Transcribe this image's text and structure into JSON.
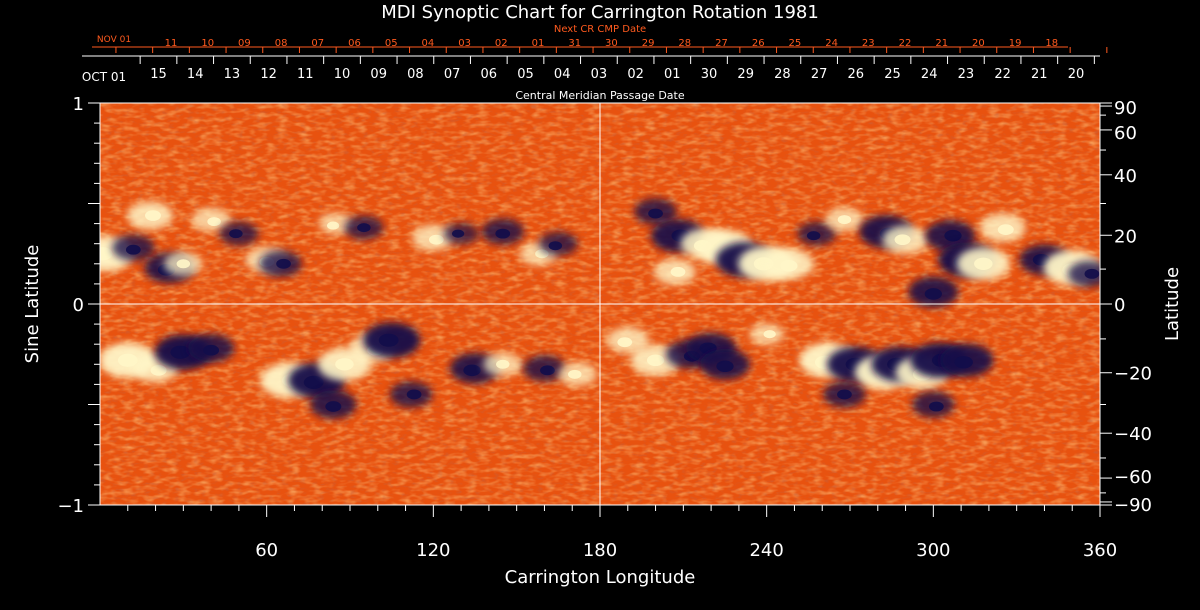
{
  "chart_data": {
    "type": "heatmap",
    "title": "MDI Synoptic Chart for Carrington Rotation 1981",
    "xlabel": "Carrington Longitude",
    "ylabel_left": "Sine Latitude",
    "ylabel_right": "Latitude",
    "xlim": [
      0,
      360
    ],
    "ylim": [
      -1,
      1
    ],
    "x_ticks": [
      60,
      120,
      180,
      240,
      300,
      360
    ],
    "y_ticks_left": [
      {
        "value": 1,
        "label": "1"
      },
      {
        "value": 0,
        "label": "0"
      },
      {
        "value": -1,
        "label": "−1"
      }
    ],
    "y_ticks_right": [
      {
        "deg": 90,
        "label": "90"
      },
      {
        "deg": 60,
        "label": "60"
      },
      {
        "deg": 40,
        "label": "40"
      },
      {
        "deg": 20,
        "label": "20"
      },
      {
        "deg": 0,
        "label": "0"
      },
      {
        "deg": -20,
        "label": "−20"
      },
      {
        "deg": -40,
        "label": "−40"
      },
      {
        "deg": -60,
        "label": "−60"
      },
      {
        "deg": -90,
        "label": "−90"
      }
    ],
    "cmp_axis": {
      "label": "Central Meridian Passage Date",
      "start_label": "OCT 01",
      "dates": [
        "15",
        "14",
        "13",
        "12",
        "11",
        "10",
        "09",
        "08",
        "07",
        "06",
        "05",
        "04",
        "03",
        "02",
        "01",
        "30",
        "29",
        "28",
        "27",
        "26",
        "25",
        "24",
        "23",
        "22",
        "21",
        "20"
      ]
    },
    "next_cr_axis": {
      "label": "Next CR CMP Date",
      "start_label": "NOV 01",
      "dates": [
        "11",
        "10",
        "09",
        "08",
        "07",
        "06",
        "05",
        "04",
        "03",
        "02",
        "01",
        "31",
        "30",
        "29",
        "28",
        "27",
        "26",
        "25",
        "24",
        "23",
        "22",
        "21",
        "20",
        "19",
        "18"
      ]
    },
    "grid_lines": {
      "vertical_longitude": 180,
      "horizontal_sine_latitude": 0
    },
    "features": [
      {
        "lon": 2,
        "sinlat": 0.25,
        "sign": "positive",
        "strength": 1.0
      },
      {
        "lon": 12,
        "sinlat": 0.28,
        "sign": "negative",
        "strength": 0.6
      },
      {
        "lon": 18,
        "sinlat": 0.44,
        "sign": "positive",
        "strength": 0.7
      },
      {
        "lon": 25,
        "sinlat": 0.18,
        "sign": "negative",
        "strength": 0.8
      },
      {
        "lon": 30,
        "sinlat": 0.2,
        "sign": "positive",
        "strength": 0.5
      },
      {
        "lon": 40,
        "sinlat": 0.42,
        "sign": "positive",
        "strength": 0.5
      },
      {
        "lon": 50,
        "sinlat": 0.35,
        "sign": "negative",
        "strength": 0.5
      },
      {
        "lon": 60,
        "sinlat": 0.22,
        "sign": "positive",
        "strength": 0.6
      },
      {
        "lon": 65,
        "sinlat": 0.2,
        "sign": "negative",
        "strength": 0.6
      },
      {
        "lon": 85,
        "sinlat": 0.4,
        "sign": "positive",
        "strength": 0.4
      },
      {
        "lon": 95,
        "sinlat": 0.38,
        "sign": "negative",
        "strength": 0.5
      },
      {
        "lon": 120,
        "sinlat": 0.33,
        "sign": "positive",
        "strength": 0.6
      },
      {
        "lon": 130,
        "sinlat": 0.35,
        "sign": "negative",
        "strength": 0.4
      },
      {
        "lon": 145,
        "sinlat": 0.36,
        "sign": "negative",
        "strength": 0.6
      },
      {
        "lon": 158,
        "sinlat": 0.25,
        "sign": "positive",
        "strength": 0.5
      },
      {
        "lon": 165,
        "sinlat": 0.3,
        "sign": "negative",
        "strength": 0.5
      },
      {
        "lon": 10,
        "sinlat": -0.28,
        "sign": "positive",
        "strength": 1.0
      },
      {
        "lon": 20,
        "sinlat": -0.32,
        "sign": "positive",
        "strength": 0.7
      },
      {
        "lon": 30,
        "sinlat": -0.24,
        "sign": "negative",
        "strength": 1.0
      },
      {
        "lon": 40,
        "sinlat": -0.22,
        "sign": "negative",
        "strength": 0.7
      },
      {
        "lon": 68,
        "sinlat": -0.38,
        "sign": "positive",
        "strength": 1.0
      },
      {
        "lon": 78,
        "sinlat": -0.38,
        "sign": "negative",
        "strength": 1.0
      },
      {
        "lon": 88,
        "sinlat": -0.3,
        "sign": "positive",
        "strength": 0.9
      },
      {
        "lon": 98,
        "sinlat": -0.22,
        "sign": "positive",
        "strength": 0.7
      },
      {
        "lon": 105,
        "sinlat": -0.18,
        "sign": "negative",
        "strength": 1.0
      },
      {
        "lon": 84,
        "sinlat": -0.5,
        "sign": "negative",
        "strength": 0.7
      },
      {
        "lon": 112,
        "sinlat": -0.45,
        "sign": "negative",
        "strength": 0.6
      },
      {
        "lon": 135,
        "sinlat": -0.32,
        "sign": "negative",
        "strength": 0.8
      },
      {
        "lon": 145,
        "sinlat": -0.3,
        "sign": "positive",
        "strength": 0.5
      },
      {
        "lon": 160,
        "sinlat": -0.32,
        "sign": "negative",
        "strength": 0.6
      },
      {
        "lon": 172,
        "sinlat": -0.35,
        "sign": "positive",
        "strength": 0.5
      },
      {
        "lon": 200,
        "sinlat": 0.46,
        "sign": "negative",
        "strength": 0.6
      },
      {
        "lon": 208,
        "sinlat": 0.34,
        "sign": "negative",
        "strength": 0.9
      },
      {
        "lon": 218,
        "sinlat": 0.3,
        "sign": "positive",
        "strength": 0.8
      },
      {
        "lon": 225,
        "sinlat": 0.28,
        "sign": "positive",
        "strength": 1.0
      },
      {
        "lon": 232,
        "sinlat": 0.22,
        "sign": "negative",
        "strength": 1.0
      },
      {
        "lon": 240,
        "sinlat": 0.2,
        "sign": "positive",
        "strength": 1.0
      },
      {
        "lon": 248,
        "sinlat": 0.2,
        "sign": "positive",
        "strength": 0.8
      },
      {
        "lon": 207,
        "sinlat": 0.16,
        "sign": "positive",
        "strength": 0.6
      },
      {
        "lon": 258,
        "sinlat": 0.35,
        "sign": "negative",
        "strength": 0.5
      },
      {
        "lon": 268,
        "sinlat": 0.42,
        "sign": "positive",
        "strength": 0.5
      },
      {
        "lon": 283,
        "sinlat": 0.36,
        "sign": "negative",
        "strength": 0.9
      },
      {
        "lon": 290,
        "sinlat": 0.32,
        "sign": "positive",
        "strength": 0.7
      },
      {
        "lon": 300,
        "sinlat": 0.06,
        "sign": "negative",
        "strength": 0.8
      },
      {
        "lon": 306,
        "sinlat": 0.34,
        "sign": "negative",
        "strength": 0.8
      },
      {
        "lon": 312,
        "sinlat": 0.22,
        "sign": "negative",
        "strength": 1.0
      },
      {
        "lon": 318,
        "sinlat": 0.2,
        "sign": "positive",
        "strength": 0.9
      },
      {
        "lon": 325,
        "sinlat": 0.38,
        "sign": "positive",
        "strength": 0.7
      },
      {
        "lon": 340,
        "sinlat": 0.22,
        "sign": "negative",
        "strength": 0.8
      },
      {
        "lon": 350,
        "sinlat": 0.18,
        "sign": "positive",
        "strength": 1.0
      },
      {
        "lon": 356,
        "sinlat": 0.15,
        "sign": "negative",
        "strength": 0.6
      },
      {
        "lon": 190,
        "sinlat": -0.18,
        "sign": "positive",
        "strength": 0.6
      },
      {
        "lon": 200,
        "sinlat": -0.28,
        "sign": "positive",
        "strength": 0.8
      },
      {
        "lon": 212,
        "sinlat": -0.25,
        "sign": "negative",
        "strength": 0.7
      },
      {
        "lon": 220,
        "sinlat": -0.22,
        "sign": "negative",
        "strength": 0.8
      },
      {
        "lon": 225,
        "sinlat": -0.3,
        "sign": "negative",
        "strength": 0.8
      },
      {
        "lon": 240,
        "sinlat": -0.15,
        "sign": "positive",
        "strength": 0.4
      },
      {
        "lon": 262,
        "sinlat": -0.28,
        "sign": "positive",
        "strength": 1.0
      },
      {
        "lon": 272,
        "sinlat": -0.3,
        "sign": "negative",
        "strength": 1.0
      },
      {
        "lon": 282,
        "sinlat": -0.34,
        "sign": "positive",
        "strength": 1.0
      },
      {
        "lon": 288,
        "sinlat": -0.3,
        "sign": "negative",
        "strength": 1.0
      },
      {
        "lon": 296,
        "sinlat": -0.34,
        "sign": "positive",
        "strength": 0.9
      },
      {
        "lon": 302,
        "sinlat": -0.28,
        "sign": "negative",
        "strength": 1.0
      },
      {
        "lon": 312,
        "sinlat": -0.28,
        "sign": "negative",
        "strength": 0.9
      },
      {
        "lon": 268,
        "sinlat": -0.45,
        "sign": "negative",
        "strength": 0.6
      },
      {
        "lon": 300,
        "sinlat": -0.5,
        "sign": "negative",
        "strength": 0.6
      }
    ],
    "colormap": {
      "background": "#e8520f",
      "positive": "#fff6c8",
      "negative": "#120d4a",
      "grid": "#ffffff",
      "next_cr_color": "#ff5a1e"
    }
  }
}
